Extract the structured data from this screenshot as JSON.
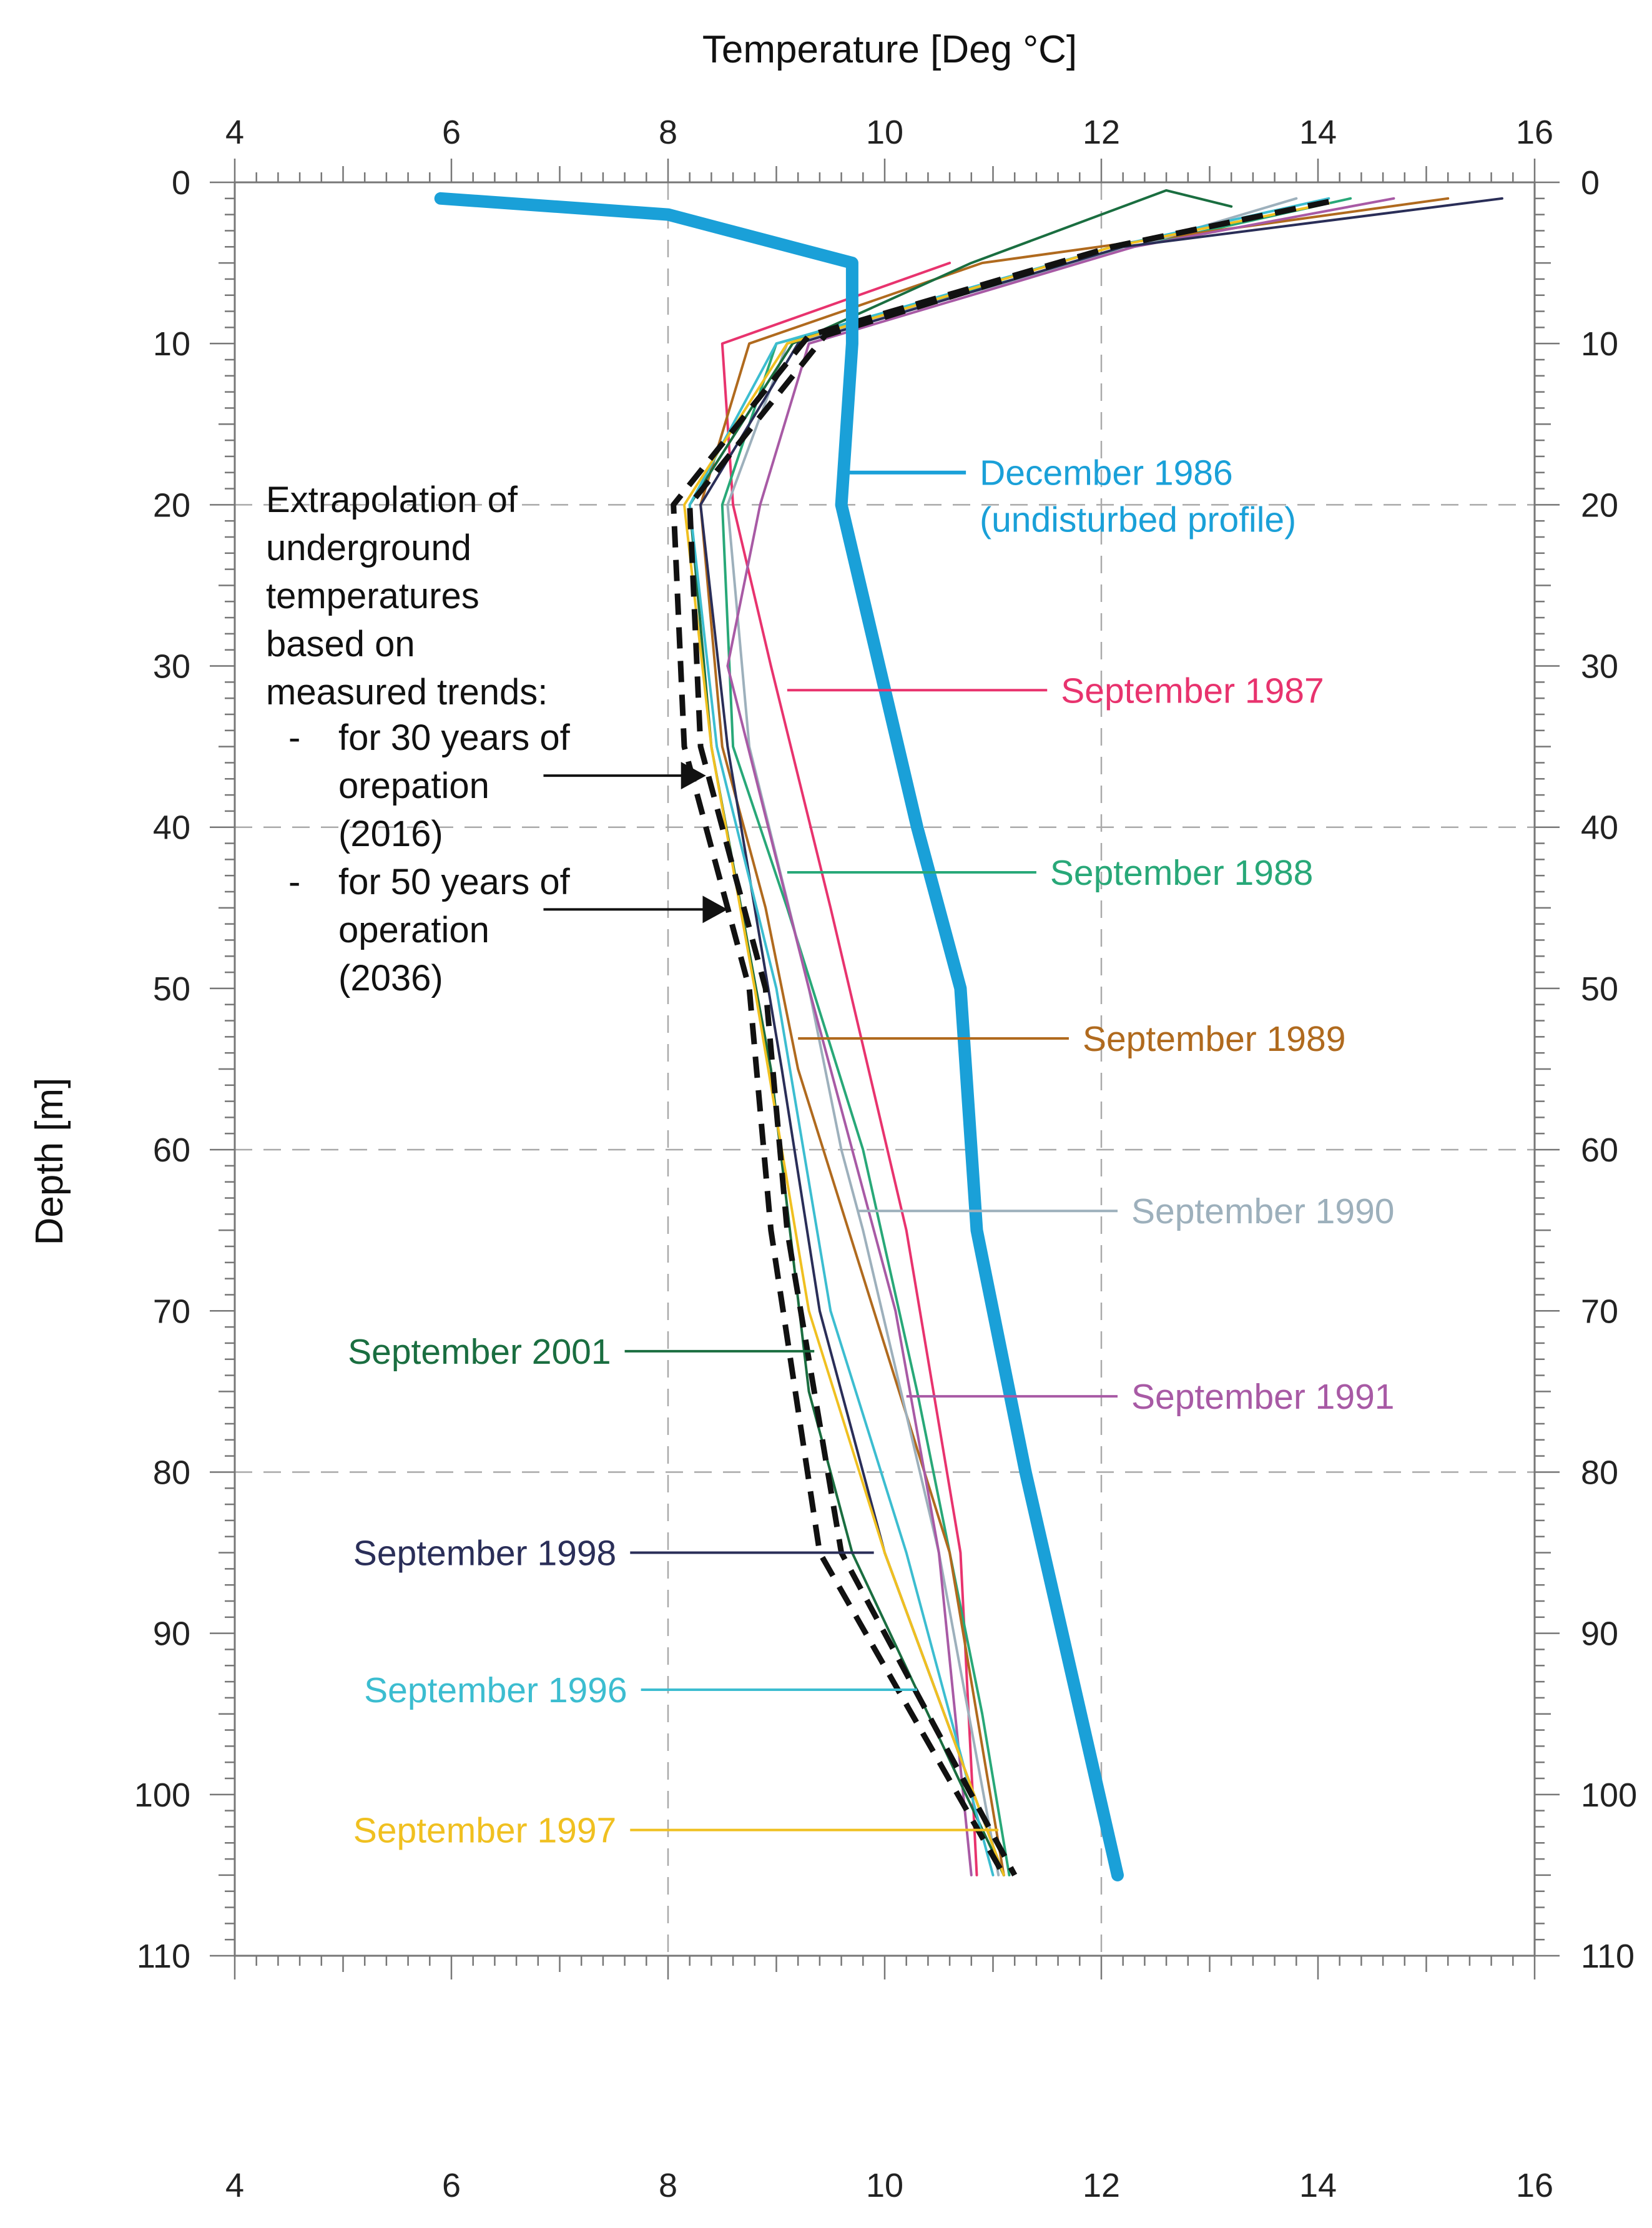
{
  "chart_data": {
    "type": "line",
    "title": "",
    "xlabel": "Temperature [Deg °C]",
    "ylabel": "Depth [m]",
    "xlim": [
      4,
      16
    ],
    "ylim": [
      0,
      110
    ],
    "x_ticks": [
      4,
      6,
      8,
      10,
      12,
      14,
      16
    ],
    "y_ticks": [
      0,
      10,
      20,
      30,
      40,
      50,
      60,
      70,
      80,
      90,
      100,
      110
    ],
    "x_tick_labels": [
      "4",
      "6",
      "8",
      "10",
      "12",
      "14",
      "16"
    ],
    "y_tick_labels": [
      "0",
      "10",
      "20",
      "30",
      "40",
      "50",
      "60",
      "70",
      "80",
      "90",
      "100",
      "110"
    ],
    "y_inverted": true,
    "grid": "dashed, every 2 deg C and 20 m",
    "series": [
      {
        "name": "December 1986",
        "label_line2": "(undisturbed profile)",
        "color": "#1aa0d8",
        "style": "thick",
        "points": [
          [
            5.9,
            1
          ],
          [
            8,
            2
          ],
          [
            9.7,
            5
          ],
          [
            9.7,
            10
          ],
          [
            9.6,
            20
          ],
          [
            10.3,
            40
          ],
          [
            10.7,
            50
          ],
          [
            10.85,
            65
          ],
          [
            11.3,
            80
          ],
          [
            12.15,
            105
          ]
        ],
        "label_at": [
          9.6,
          18
        ]
      },
      {
        "name": "September 1987",
        "color": "#e8336e",
        "points": [
          [
            10.6,
            5
          ],
          [
            8.5,
            10
          ],
          [
            8.6,
            20
          ],
          [
            8.95,
            30
          ],
          [
            9.5,
            45
          ],
          [
            10.2,
            65
          ],
          [
            10.7,
            85
          ],
          [
            10.85,
            105
          ]
        ],
        "label_at": [
          9.1,
          31.5
        ]
      },
      {
        "name": "September 1988",
        "color": "#28a878",
        "points": [
          [
            14.3,
            1
          ],
          [
            12.3,
            4
          ],
          [
            9,
            10
          ],
          [
            8.5,
            20
          ],
          [
            8.6,
            35
          ],
          [
            9.1,
            45
          ],
          [
            9.8,
            60
          ],
          [
            10.3,
            75
          ],
          [
            10.9,
            95
          ],
          [
            11.15,
            105
          ]
        ],
        "label_at": [
          9.1,
          42.8
        ]
      },
      {
        "name": "September 1989",
        "color": "#b06a1e",
        "points": [
          [
            15.2,
            1
          ],
          [
            10.9,
            5
          ],
          [
            8.75,
            10
          ],
          [
            8.3,
            20
          ],
          [
            8.5,
            35
          ],
          [
            8.9,
            45
          ],
          [
            9.2,
            55
          ],
          [
            9.9,
            70
          ],
          [
            10.6,
            85
          ],
          [
            11.1,
            105
          ]
        ],
        "label_at": [
          9.2,
          53.1
        ]
      },
      {
        "name": "September 1990",
        "color": "#9db0bc",
        "points": [
          [
            13.8,
            1
          ],
          [
            12.3,
            4
          ],
          [
            9.1,
            10
          ],
          [
            8.55,
            20
          ],
          [
            8.75,
            35
          ],
          [
            9.3,
            50
          ],
          [
            9.6,
            60
          ],
          [
            9.8,
            65
          ],
          [
            10.5,
            85
          ],
          [
            11.05,
            105
          ]
        ],
        "label_at": [
          9.75,
          63.8
        ]
      },
      {
        "name": "September 1991",
        "color": "#a85aa5",
        "points": [
          [
            14.7,
            1
          ],
          [
            12.3,
            4
          ],
          [
            9.3,
            10
          ],
          [
            8.85,
            20
          ],
          [
            8.55,
            30
          ],
          [
            9.3,
            50
          ],
          [
            10.1,
            70
          ],
          [
            10.5,
            85
          ],
          [
            10.8,
            105
          ]
        ],
        "label_at": [
          10.2,
          75.3
        ]
      },
      {
        "name": "September 2001",
        "color": "#1a6e40",
        "points": [
          [
            13.2,
            1.5
          ],
          [
            12.6,
            0.5
          ],
          [
            10.8,
            5
          ],
          [
            9.15,
            10
          ],
          [
            8.2,
            20
          ],
          [
            8.4,
            35
          ],
          [
            8.95,
            55
          ],
          [
            9.3,
            75
          ],
          [
            9.7,
            85
          ],
          [
            11.1,
            105
          ]
        ],
        "label_at": [
          9.35,
          72.5
        ]
      },
      {
        "name": "September 1998",
        "color": "#2a2e58",
        "points": [
          [
            15.7,
            1
          ],
          [
            12.2,
            4
          ],
          [
            9.2,
            10
          ],
          [
            8.3,
            20
          ],
          [
            8.55,
            35
          ],
          [
            9.05,
            55
          ],
          [
            9.4,
            70
          ],
          [
            10,
            85
          ],
          [
            11.1,
            105
          ]
        ],
        "label_at": [
          9.9,
          85
        ]
      },
      {
        "name": "September 1996",
        "color": "#3cbdd0",
        "points": [
          [
            14.1,
            1
          ],
          [
            12.1,
            4
          ],
          [
            9,
            10
          ],
          [
            8.2,
            20
          ],
          [
            8.45,
            35
          ],
          [
            9,
            50
          ],
          [
            9.5,
            70
          ],
          [
            10.2,
            85
          ],
          [
            11,
            105
          ]
        ],
        "label_at": [
          10.3,
          93.5
        ]
      },
      {
        "name": "September 1997",
        "color": "#f0c020",
        "points": [
          [
            14.1,
            1.3
          ],
          [
            12.1,
            4
          ],
          [
            9.1,
            10
          ],
          [
            8.15,
            20
          ],
          [
            8.4,
            35
          ],
          [
            8.8,
            50
          ],
          [
            9.3,
            70
          ],
          [
            10,
            85
          ],
          [
            11.1,
            105
          ]
        ],
        "label_at": [
          11.05,
          102.2
        ]
      },
      {
        "name": "Extrapolation 2016 (30 years)",
        "color": "#111111",
        "style": "dashed",
        "points": [
          [
            14.1,
            1.2
          ],
          [
            12.1,
            4
          ],
          [
            9.45,
            9.5
          ],
          [
            8.2,
            20
          ],
          [
            8.3,
            35
          ],
          [
            8.9,
            50
          ],
          [
            9.1,
            65
          ],
          [
            9.6,
            85
          ],
          [
            11.2,
            105
          ]
        ]
      },
      {
        "name": "Extrapolation 2036 (50 years)",
        "color": "#111111",
        "style": "dashed",
        "points": [
          [
            14.1,
            1.2
          ],
          [
            12.1,
            4
          ],
          [
            9.3,
            9.5
          ],
          [
            8.05,
            20
          ],
          [
            8.15,
            35
          ],
          [
            8.75,
            50
          ],
          [
            8.95,
            65
          ],
          [
            9.4,
            85
          ],
          [
            11.1,
            105
          ]
        ]
      }
    ],
    "label_ends": [
      {
        "series": "December 1986",
        "x": 10.75,
        "y": 18
      },
      {
        "series": "September 1987",
        "x": 11.5,
        "y": 31.5
      },
      {
        "series": "September 1988",
        "x": 11.4,
        "y": 42.8
      },
      {
        "series": "September 1989",
        "x": 11.7,
        "y": 53.1
      },
      {
        "series": "September 1990",
        "x": 12.15,
        "y": 63.8
      },
      {
        "series": "September 1991",
        "x": 12.15,
        "y": 75.3
      },
      {
        "series": "September 2001",
        "x": 7.6,
        "y": 72.5
      },
      {
        "series": "September 1998",
        "x": 7.65,
        "y": 85
      },
      {
        "series": "September 1996",
        "x": 7.75,
        "y": 93.5
      },
      {
        "series": "September 1997",
        "x": 7.65,
        "y": 102.2
      }
    ],
    "annotation": {
      "lines": [
        "Extrapolation of",
        "underground",
        "temperatures",
        "based on",
        "measured trends:",
        "-",
        "for 30 years of",
        "orepation",
        "(2016)",
        "-",
        "for 50 years of",
        "operation",
        "(2036)"
      ],
      "arrows": [
        {
          "from": [
            6.85,
            36.8
          ],
          "to": [
            8.35,
            36.8
          ]
        },
        {
          "from": [
            6.85,
            45.1
          ],
          "to": [
            8.55,
            45.1
          ]
        }
      ]
    }
  }
}
